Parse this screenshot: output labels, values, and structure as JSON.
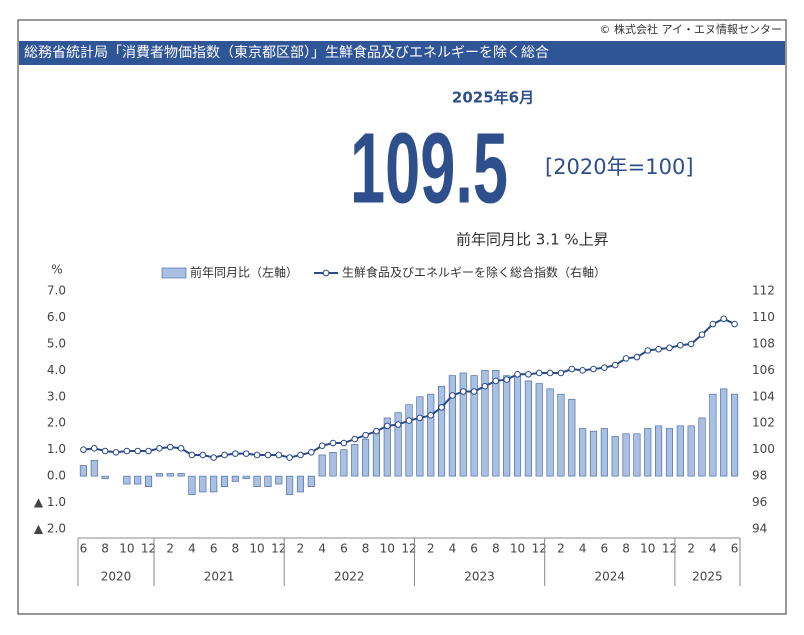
{
  "header": {
    "copyright": "© 株式会社 アイ・エヌ情報センター",
    "banner": "総務省統計局「消費者物価指数（東京都区部）」生鮮食品及びエネルギーを除く総合",
    "period": "2025年6月",
    "headline_value": 109.5,
    "base": "[2020年=100]",
    "change_text": "前年同月比  3.1 %上昇"
  },
  "chart_data": {
    "type": "bar-line",
    "y_unit": "%",
    "legend": "top",
    "categories": [
      "6",
      null,
      "8",
      null,
      "10",
      null,
      "12",
      null,
      "2",
      null,
      "4",
      null,
      "6",
      null,
      "8",
      null,
      "10",
      null,
      "12",
      null,
      "2",
      null,
      "4",
      null,
      "6",
      null,
      "8",
      null,
      "10",
      null,
      "12",
      null,
      "2",
      null,
      "4",
      null,
      "6",
      null,
      "8",
      null,
      "10",
      null,
      "12",
      null,
      "2",
      null,
      "4",
      null,
      "6",
      null,
      "8",
      null,
      "10",
      null,
      "12",
      null,
      "2",
      null,
      "4",
      null,
      "6"
    ],
    "year_groups": [
      {
        "label": "2020",
        "count": 7
      },
      {
        "label": "2021",
        "count": 12
      },
      {
        "label": "2022",
        "count": 12
      },
      {
        "label": "2023",
        "count": 12
      },
      {
        "label": "2024",
        "count": 12
      },
      {
        "label": "2025",
        "count": 6
      }
    ],
    "series": [
      {
        "name": "前年同月比（左軸）",
        "type": "bar",
        "color": "#a9c0e3",
        "stroke": "#3b5fa0",
        "values": [
          0.4,
          0.6,
          -0.1,
          0.0,
          -0.3,
          -0.3,
          -0.4,
          0.1,
          0.1,
          0.1,
          -0.7,
          -0.6,
          -0.6,
          -0.4,
          -0.2,
          -0.1,
          -0.4,
          -0.4,
          -0.3,
          -0.7,
          -0.6,
          -0.4,
          0.8,
          0.9,
          1.0,
          1.2,
          1.4,
          1.7,
          2.2,
          2.4,
          2.7,
          3.0,
          3.1,
          3.4,
          3.8,
          3.9,
          3.8,
          4.0,
          4.0,
          3.8,
          3.8,
          3.6,
          3.5,
          3.3,
          3.1,
          2.9,
          1.8,
          1.7,
          1.8,
          1.5,
          1.6,
          1.6,
          1.8,
          1.9,
          1.8,
          1.9,
          1.9,
          2.2,
          3.1,
          3.3,
          3.1
        ]
      },
      {
        "name": "生鮮食品及びエネルギーを除く総合指数（右軸）",
        "type": "line",
        "axis": "y2",
        "color": "#2b4a8a",
        "values": [
          100.0,
          100.1,
          99.9,
          99.8,
          99.9,
          99.9,
          99.9,
          100.1,
          100.2,
          100.1,
          99.6,
          99.6,
          99.4,
          99.6,
          99.7,
          99.7,
          99.6,
          99.6,
          99.6,
          99.4,
          99.6,
          99.8,
          100.3,
          100.5,
          100.5,
          100.8,
          101.1,
          101.4,
          101.8,
          101.9,
          102.2,
          102.4,
          102.6,
          103.2,
          104.1,
          104.4,
          104.4,
          104.8,
          105.2,
          105.3,
          105.7,
          105.7,
          105.8,
          105.8,
          105.8,
          106.1,
          106.0,
          106.1,
          106.2,
          106.4,
          106.9,
          107.0,
          107.5,
          107.6,
          107.7,
          107.9,
          108.0,
          108.7,
          109.5,
          109.9,
          109.5
        ]
      }
    ],
    "ylim": [
      -2,
      7
    ],
    "yticks": [
      {
        "value": 7,
        "label": "7.0"
      },
      {
        "value": 6,
        "label": "6.0"
      },
      {
        "value": 5,
        "label": "5.0"
      },
      {
        "value": 4,
        "label": "4.0"
      },
      {
        "value": 3,
        "label": "3.0"
      },
      {
        "value": 2,
        "label": "2.0"
      },
      {
        "value": 1,
        "label": "1.0"
      },
      {
        "value": 0,
        "label": "0.0"
      },
      {
        "value": -1,
        "label": "▲ 1.0"
      },
      {
        "value": -2,
        "label": "▲ 2.0"
      }
    ],
    "y2lim": [
      94,
      112
    ],
    "y2ticks": [
      94,
      96,
      98,
      100,
      102,
      104,
      106,
      108,
      110,
      112
    ]
  }
}
